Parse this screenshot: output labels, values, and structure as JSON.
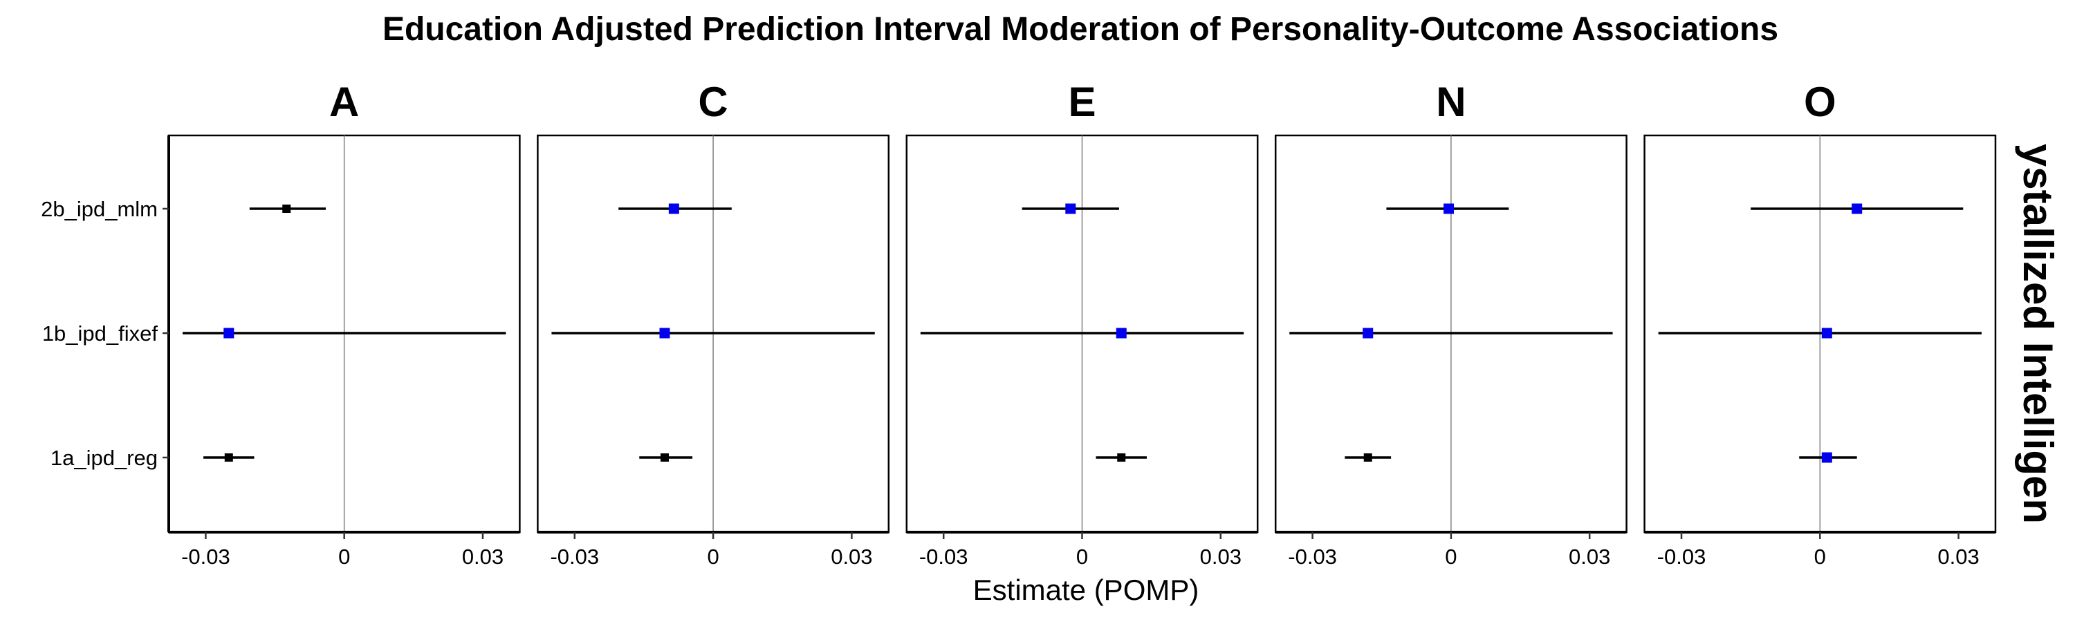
{
  "chart_data": {
    "type": "forest",
    "title": "Education Adjusted Prediction Interval Moderation of Personality-Outcome Associations",
    "xlabel": "Estimate (POMP)",
    "ylabel": "",
    "strip_label": "ystallized Intelligen",
    "xlim": [
      -0.038,
      0.038
    ],
    "xticks": [
      -0.03,
      0,
      0.03
    ],
    "xtick_labels": [
      "-0.03",
      "0",
      "0.03"
    ],
    "categories": [
      "2b_ipd_mlm",
      "1b_ipd_fixef",
      "1a_ipd_reg"
    ],
    "colors": {
      "significant": "#000000",
      "nonsignificant": "#0000ee"
    },
    "panels": [
      {
        "name": "A",
        "points": [
          {
            "model": "2b_ipd_mlm",
            "est": -0.0125,
            "lo": -0.0205,
            "hi": -0.004,
            "sig": true
          },
          {
            "model": "1b_ipd_fixef",
            "est": -0.025,
            "lo": -0.035,
            "hi": 0.035,
            "sig": false
          },
          {
            "model": "1a_ipd_reg",
            "est": -0.025,
            "lo": -0.0305,
            "hi": -0.0195,
            "sig": true
          }
        ]
      },
      {
        "name": "C",
        "points": [
          {
            "model": "2b_ipd_mlm",
            "est": -0.0085,
            "lo": -0.0205,
            "hi": 0.004,
            "sig": false
          },
          {
            "model": "1b_ipd_fixef",
            "est": -0.0105,
            "lo": -0.035,
            "hi": 0.035,
            "sig": false
          },
          {
            "model": "1a_ipd_reg",
            "est": -0.0105,
            "lo": -0.016,
            "hi": -0.0045,
            "sig": true
          }
        ]
      },
      {
        "name": "E",
        "points": [
          {
            "model": "2b_ipd_mlm",
            "est": -0.0025,
            "lo": -0.013,
            "hi": 0.008,
            "sig": false
          },
          {
            "model": "1b_ipd_fixef",
            "est": 0.0085,
            "lo": -0.035,
            "hi": 0.035,
            "sig": false
          },
          {
            "model": "1a_ipd_reg",
            "est": 0.0085,
            "lo": 0.003,
            "hi": 0.014,
            "sig": true
          }
        ]
      },
      {
        "name": "N",
        "points": [
          {
            "model": "2b_ipd_mlm",
            "est": -0.0005,
            "lo": -0.014,
            "hi": 0.0125,
            "sig": false
          },
          {
            "model": "1b_ipd_fixef",
            "est": -0.018,
            "lo": -0.035,
            "hi": 0.035,
            "sig": false
          },
          {
            "model": "1a_ipd_reg",
            "est": -0.018,
            "lo": -0.023,
            "hi": -0.013,
            "sig": true
          }
        ]
      },
      {
        "name": "O",
        "points": [
          {
            "model": "2b_ipd_mlm",
            "est": 0.008,
            "lo": -0.015,
            "hi": 0.031,
            "sig": false
          },
          {
            "model": "1b_ipd_fixef",
            "est": 0.0015,
            "lo": -0.035,
            "hi": 0.035,
            "sig": false
          },
          {
            "model": "1a_ipd_reg",
            "est": 0.0015,
            "lo": -0.0045,
            "hi": 0.008,
            "sig": false
          }
        ]
      }
    ]
  }
}
